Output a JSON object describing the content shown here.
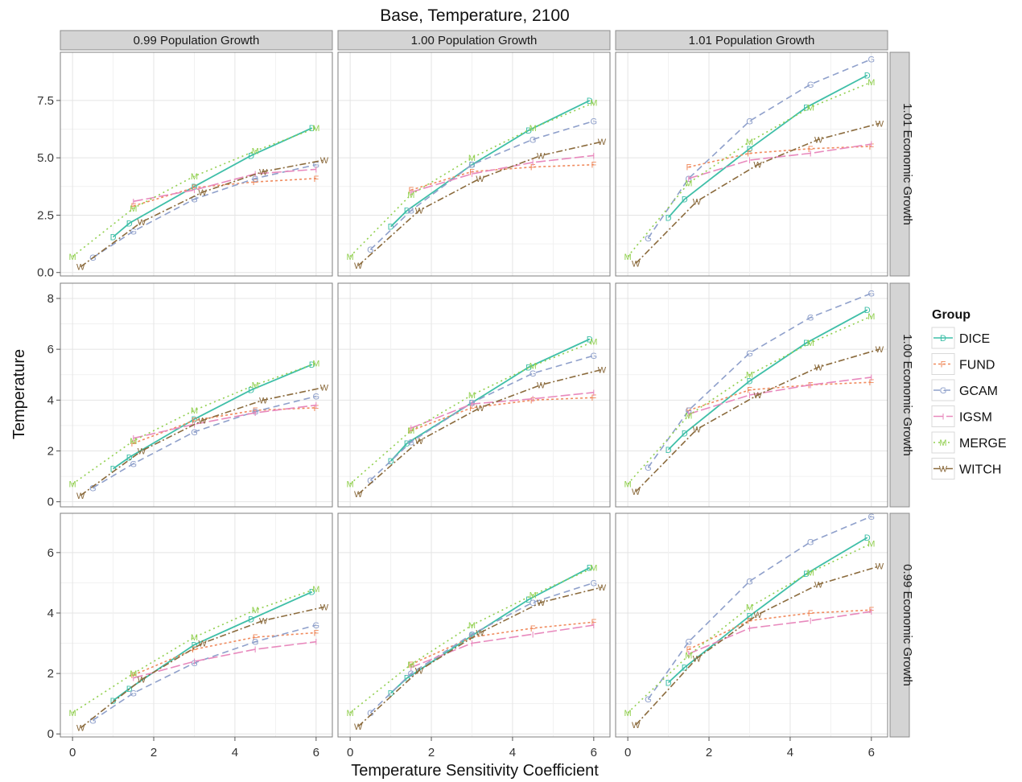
{
  "colors": {
    "DICE": "#3fbfa8",
    "FUND": "#f08b5e",
    "GCAM": "#8fa0cb",
    "IGSM": "#e889bd",
    "MERGE": "#92d050",
    "WITCH": "#8b6b3d",
    "strip_fill": "#d4d4d4",
    "grid": "#e4e4e4"
  },
  "chart_data": {
    "type": "line",
    "title": "Base, Temperature, 2100",
    "xlabel": "Temperature Sensitivity Coefficient",
    "ylabel": "Temperature",
    "legend_title": "Group",
    "legend_position": "right",
    "grid": true,
    "x_ticks": [
      0,
      2,
      4,
      6
    ],
    "xlim": [
      -0.3,
      6.4
    ],
    "column_labels": [
      "0.99 Population Growth",
      "1.00 Population Growth",
      "1.01 Population Growth"
    ],
    "row_labels": [
      "1.01 Economic Growth",
      "1.00 Economic Growth",
      "0.99 Economic Growth"
    ],
    "row_scales": [
      {
        "ylim": [
          -0.15,
          9.6
        ],
        "ticks": [
          0.0,
          2.5,
          5.0,
          7.5
        ],
        "tick_labels": [
          "0.0",
          "2.5",
          "5.0",
          "7.5"
        ]
      },
      {
        "ylim": [
          -0.2,
          8.6
        ],
        "ticks": [
          0,
          2,
          4,
          6,
          8
        ],
        "tick_labels": [
          "0",
          "2",
          "4",
          "6",
          "8"
        ]
      },
      {
        "ylim": [
          -0.1,
          7.3
        ],
        "ticks": [
          0,
          2,
          4,
          6
        ],
        "tick_labels": [
          "0",
          "2",
          "4",
          "6"
        ]
      }
    ],
    "series": [
      {
        "name": "DICE",
        "marker": "D",
        "dash": "solid",
        "x": [
          1.0,
          1.4,
          3.0,
          4.4,
          5.9
        ]
      },
      {
        "name": "FUND",
        "marker": "F",
        "dash": "dot",
        "x": [
          1.5,
          3.0,
          4.5,
          6.0
        ]
      },
      {
        "name": "GCAM",
        "marker": "G",
        "dash": "dash",
        "x": [
          0.5,
          1.5,
          3.0,
          4.5,
          6.0
        ]
      },
      {
        "name": "IGSM",
        "marker": "I",
        "dash": "longdash",
        "x": [
          1.5,
          3.0,
          4.5,
          6.0
        ]
      },
      {
        "name": "MERGE",
        "marker": "M",
        "dash": "dotted",
        "x": [
          0.0,
          1.5,
          3.0,
          4.5,
          6.0
        ]
      },
      {
        "name": "WITCH",
        "marker": "W",
        "dash": "dotdash",
        "x": [
          0.2,
          1.7,
          3.2,
          4.7,
          6.2
        ]
      }
    ],
    "panels": [
      {
        "row": 0,
        "col": 0,
        "values": {
          "DICE": [
            1.55,
            2.15,
            3.75,
            5.1,
            6.3
          ],
          "FUND": [
            2.9,
            3.7,
            3.95,
            4.1
          ],
          "GCAM": [
            0.65,
            1.8,
            3.2,
            4.1,
            4.7
          ],
          "IGSM": [
            3.1,
            3.6,
            4.3,
            4.5
          ],
          "MERGE": [
            0.7,
            2.8,
            4.2,
            5.3,
            6.3
          ],
          "WITCH": [
            0.25,
            2.2,
            3.5,
            4.4,
            4.9
          ]
        }
      },
      {
        "row": 0,
        "col": 1,
        "values": {
          "DICE": [
            2.0,
            2.7,
            4.7,
            6.2,
            7.5
          ],
          "FUND": [
            3.6,
            4.4,
            4.6,
            4.7
          ],
          "GCAM": [
            1.0,
            2.7,
            4.7,
            5.8,
            6.6
          ],
          "IGSM": [
            3.5,
            4.3,
            4.8,
            5.1
          ],
          "MERGE": [
            0.7,
            3.4,
            5.0,
            6.3,
            7.4
          ],
          "WITCH": [
            0.3,
            2.7,
            4.1,
            5.1,
            5.7
          ]
        }
      },
      {
        "row": 0,
        "col": 2,
        "values": {
          "DICE": [
            2.4,
            3.2,
            5.4,
            7.2,
            8.6
          ],
          "FUND": [
            4.6,
            5.2,
            5.4,
            5.5
          ],
          "GCAM": [
            1.5,
            4.1,
            6.6,
            8.2,
            9.3
          ],
          "IGSM": [
            4.1,
            4.9,
            5.2,
            5.6
          ],
          "MERGE": [
            0.7,
            3.9,
            5.7,
            7.2,
            8.3
          ],
          "WITCH": [
            0.4,
            3.1,
            4.7,
            5.8,
            6.5
          ]
        }
      },
      {
        "row": 1,
        "col": 0,
        "values": {
          "DICE": [
            1.3,
            1.75,
            3.25,
            4.4,
            5.4
          ],
          "FUND": [
            2.3,
            3.2,
            3.6,
            3.7
          ],
          "GCAM": [
            0.55,
            1.5,
            2.75,
            3.55,
            4.15
          ],
          "IGSM": [
            2.5,
            3.05,
            3.5,
            3.8
          ],
          "MERGE": [
            0.7,
            2.4,
            3.6,
            4.6,
            5.45
          ],
          "WITCH": [
            0.25,
            2.0,
            3.2,
            4.0,
            4.5
          ]
        }
      },
      {
        "row": 1,
        "col": 1,
        "values": {
          "DICE": [
            1.6,
            2.3,
            3.9,
            5.3,
            6.4
          ],
          "FUND": [
            2.8,
            3.7,
            4.0,
            4.1
          ],
          "GCAM": [
            0.85,
            2.35,
            3.9,
            5.05,
            5.75
          ],
          "IGSM": [
            2.9,
            3.85,
            4.05,
            4.3
          ],
          "MERGE": [
            0.7,
            2.8,
            4.2,
            5.35,
            6.3
          ],
          "WITCH": [
            0.3,
            2.4,
            3.7,
            4.6,
            5.2
          ]
        }
      },
      {
        "row": 1,
        "col": 2,
        "values": {
          "DICE": [
            2.05,
            2.7,
            4.75,
            6.25,
            7.55
          ],
          "FUND": [
            3.6,
            4.4,
            4.6,
            4.7
          ],
          "GCAM": [
            1.35,
            3.6,
            5.85,
            7.25,
            8.2
          ],
          "IGSM": [
            3.45,
            4.2,
            4.6,
            4.9
          ],
          "MERGE": [
            0.7,
            3.4,
            5.0,
            6.25,
            7.3
          ],
          "WITCH": [
            0.4,
            2.85,
            4.2,
            5.3,
            6.0
          ]
        }
      },
      {
        "row": 2,
        "col": 0,
        "values": {
          "DICE": [
            1.1,
            1.5,
            2.95,
            3.8,
            4.7
          ],
          "FUND": [
            1.95,
            2.8,
            3.2,
            3.35
          ],
          "GCAM": [
            0.45,
            1.35,
            2.35,
            3.05,
            3.6
          ],
          "IGSM": [
            1.85,
            2.4,
            2.8,
            3.05
          ],
          "MERGE": [
            0.7,
            2.0,
            3.2,
            4.1,
            4.8
          ],
          "WITCH": [
            0.2,
            1.8,
            3.0,
            3.75,
            4.2
          ]
        }
      },
      {
        "row": 2,
        "col": 1,
        "values": {
          "DICE": [
            1.35,
            1.85,
            3.25,
            4.45,
            5.5
          ],
          "FUND": [
            2.3,
            3.2,
            3.5,
            3.7
          ],
          "GCAM": [
            0.7,
            2.0,
            3.3,
            4.35,
            5.0
          ],
          "IGSM": [
            2.2,
            3.0,
            3.3,
            3.6
          ],
          "MERGE": [
            0.7,
            2.3,
            3.6,
            4.6,
            5.5
          ],
          "WITCH": [
            0.25,
            2.1,
            3.35,
            4.35,
            4.85
          ]
        }
      },
      {
        "row": 2,
        "col": 2,
        "values": {
          "DICE": [
            1.7,
            2.2,
            3.9,
            5.3,
            6.5
          ],
          "FUND": [
            2.8,
            3.75,
            4.0,
            4.1
          ],
          "GCAM": [
            1.15,
            3.05,
            5.05,
            6.35,
            7.2
          ],
          "IGSM": [
            2.65,
            3.5,
            3.75,
            4.05
          ],
          "MERGE": [
            0.7,
            2.6,
            4.2,
            5.35,
            6.3
          ],
          "WITCH": [
            0.3,
            2.5,
            3.95,
            4.95,
            5.55
          ]
        }
      }
    ]
  }
}
